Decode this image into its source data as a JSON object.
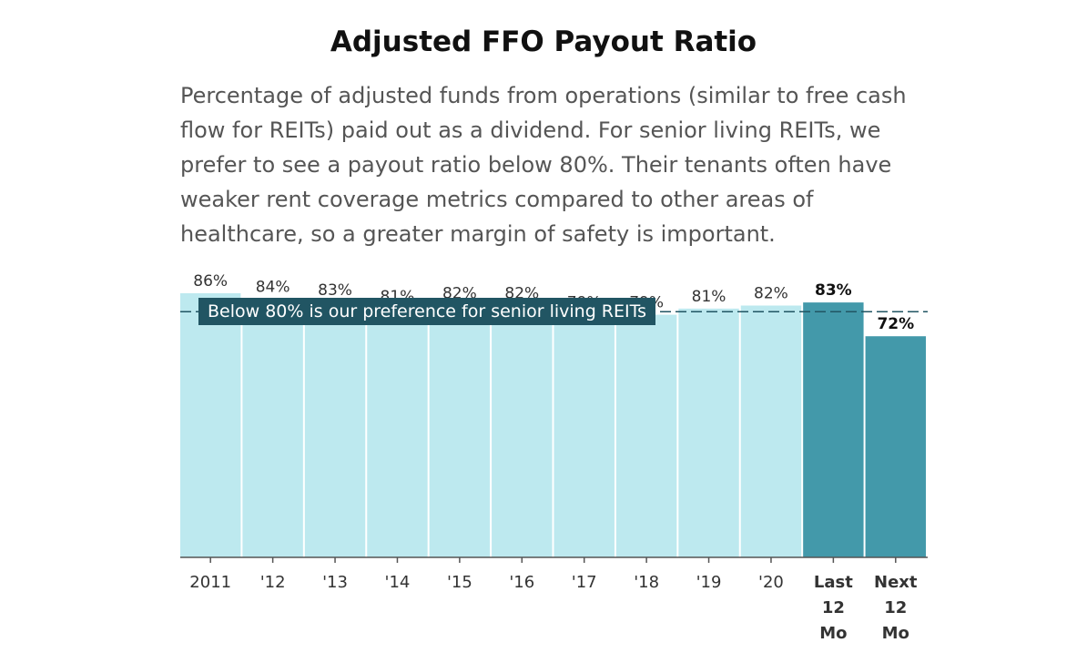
{
  "chart_data": {
    "type": "bar",
    "title": "Adjusted FFO Payout Ratio",
    "subtitle": "Percentage of adjusted funds from operations (similar to free cash flow for REITs) paid out as a dividend. For senior living REITs, we prefer to see a payout ratio below 80%. Their tenants often have weaker rent coverage metrics compared to other areas of healthcare, so a greater margin of safety is important.",
    "categories": [
      "2011",
      "'12",
      "'13",
      "'14",
      "'15",
      "'16",
      "'17",
      "'18",
      "'19",
      "'20",
      "Last 12 Mo",
      "Next 12 Mo"
    ],
    "values": [
      86,
      84,
      83,
      81,
      82,
      82,
      79,
      79,
      81,
      82,
      83,
      72
    ],
    "value_labels": [
      "86%",
      "84%",
      "83%",
      "81%",
      "82%",
      "82%",
      "79%",
      "79%",
      "81%",
      "82%",
      "83%",
      "72%"
    ],
    "highlighted": [
      false,
      false,
      false,
      false,
      false,
      false,
      false,
      false,
      false,
      false,
      true,
      true
    ],
    "ylim": [
      0,
      86
    ],
    "reference_line": {
      "value": 80,
      "label": "Below 80% is our preference for senior living REITs"
    },
    "grid": false,
    "legend": "none",
    "colors": {
      "bar": "#bde9ef",
      "bar_highlight": "#4399aa",
      "reference": "#215563",
      "axis": "#555555"
    }
  }
}
